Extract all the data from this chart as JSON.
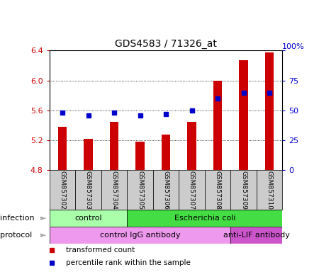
{
  "title": "GDS4583 / 71326_at",
  "samples": [
    "GSM857302",
    "GSM857303",
    "GSM857304",
    "GSM857305",
    "GSM857306",
    "GSM857307",
    "GSM857308",
    "GSM857309",
    "GSM857310"
  ],
  "transformed_count": [
    5.38,
    5.22,
    5.45,
    5.18,
    5.28,
    5.45,
    6.0,
    6.27,
    6.38
  ],
  "percentile_rank": [
    48,
    46,
    48,
    46,
    47,
    50,
    60,
    65,
    65
  ],
  "ylim": [
    4.8,
    6.4
  ],
  "yticks_left": [
    4.8,
    5.2,
    5.6,
    6.0,
    6.4
  ],
  "yticks_right": [
    0,
    25,
    50,
    75,
    100
  ],
  "bar_color": "#cc0000",
  "dot_color": "#0000cc",
  "bar_bottom": 4.8,
  "infection_groups": [
    {
      "label": "control",
      "start": 0,
      "end": 3,
      "color": "#aaffaa"
    },
    {
      "label": "Escherichia coli",
      "start": 3,
      "end": 9,
      "color": "#44dd44"
    }
  ],
  "protocol_groups": [
    {
      "label": "control IgG antibody",
      "start": 0,
      "end": 7,
      "color": "#ee99ee"
    },
    {
      "label": "anti-LIF antibody",
      "start": 7,
      "end": 9,
      "color": "#cc55cc"
    }
  ],
  "legend_items": [
    {
      "label": "transformed count",
      "color": "#cc0000"
    },
    {
      "label": "percentile rank within the sample",
      "color": "#0000cc"
    }
  ],
  "left_label_color": "#cc0000",
  "right_label_color": "#0000cc",
  "sample_box_color": "#cccccc",
  "arrow_color": "#aaaaaa"
}
